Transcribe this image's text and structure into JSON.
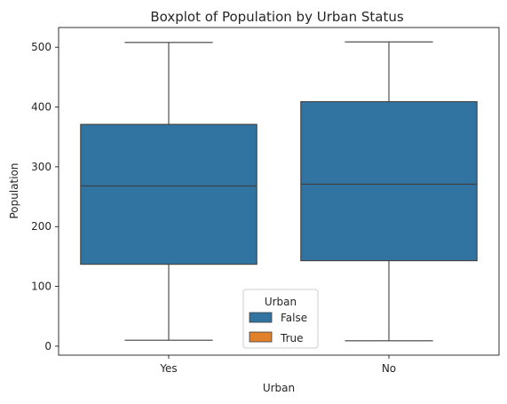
{
  "chart_data": {
    "type": "boxplot",
    "title": "Boxplot of Population by Urban Status",
    "xlabel": "Urban",
    "ylabel": "Population",
    "categories": [
      "Yes",
      "No"
    ],
    "ylim": [
      -15,
      533
    ],
    "yticks": [
      0,
      100,
      200,
      300,
      400,
      500
    ],
    "boxes": [
      {
        "category": "Yes",
        "min": 10,
        "q1": 137,
        "median": 268,
        "q3": 371,
        "max": 508
      },
      {
        "category": "No",
        "min": 9,
        "q1": 143,
        "median": 271,
        "q3": 409,
        "max": 509
      }
    ],
    "legend": {
      "title": "Urban",
      "placement": "bottom-center",
      "entries": [
        {
          "label": "False",
          "color": "#3274a1"
        },
        {
          "label": "True",
          "color": "#e1812c"
        }
      ]
    },
    "colors": {
      "box_fill": "#3274a1",
      "line": "#3f3f3f"
    }
  }
}
